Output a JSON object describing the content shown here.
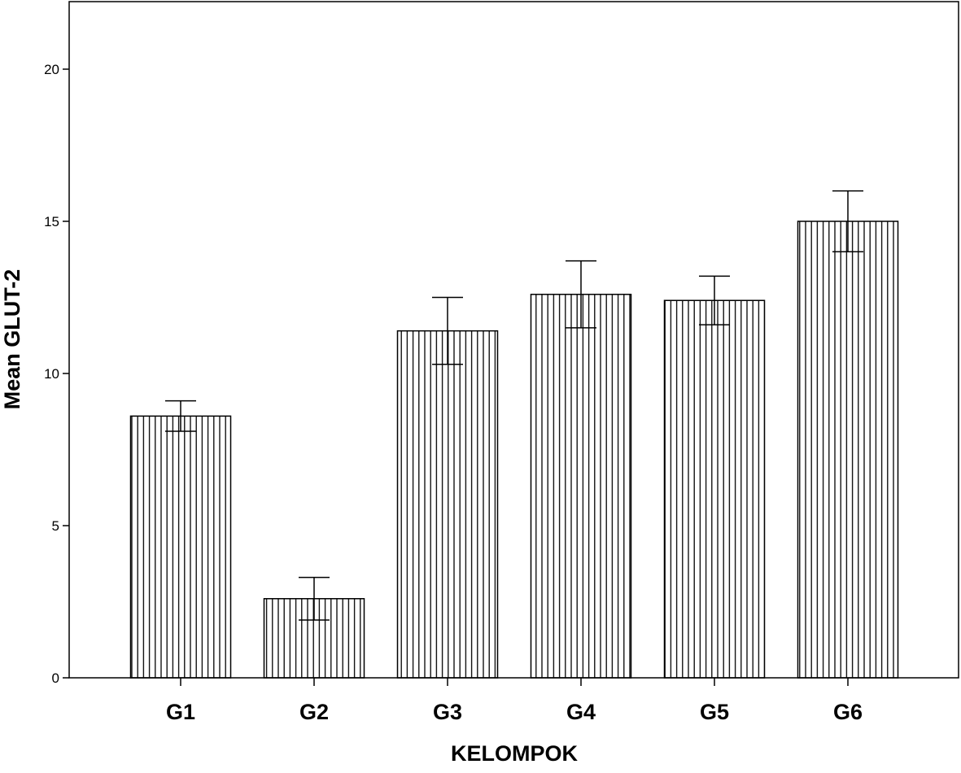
{
  "chart_data": {
    "type": "bar",
    "title": "",
    "xlabel": "KELOMPOK",
    "ylabel": "Mean GLUT-2",
    "categories": [
      "G1",
      "G2",
      "G3",
      "G4",
      "G5",
      "G6"
    ],
    "values": [
      8.6,
      2.6,
      11.4,
      12.6,
      12.4,
      15.0
    ],
    "error_upper": [
      9.1,
      3.3,
      12.5,
      13.7,
      13.2,
      16.0
    ],
    "error_lower": [
      8.1,
      1.9,
      10.3,
      11.5,
      11.6,
      14.0
    ],
    "ylim": [
      0,
      22.0
    ],
    "yticks": [
      "0",
      "5",
      "10",
      "15",
      "20"
    ],
    "grid": false,
    "bar_pattern": "vertical-hatch",
    "colors": {
      "bar_fill": "#ffffff",
      "bar_stroke": "#000000",
      "axis": "#000000"
    }
  }
}
